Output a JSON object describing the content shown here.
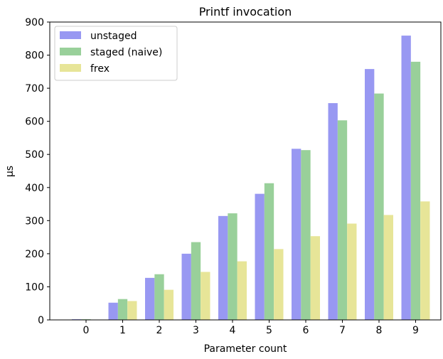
{
  "chart_data": {
    "type": "bar",
    "title": "Printf invocation",
    "xlabel": "Parameter count",
    "ylabel": "µs",
    "categories": [
      "0",
      "1",
      "2",
      "3",
      "4",
      "5",
      "6",
      "7",
      "8",
      "9"
    ],
    "ylim": [
      0,
      900
    ],
    "yticks": [
      "0",
      "100",
      "200",
      "300",
      "400",
      "500",
      "600",
      "700",
      "800",
      "900"
    ],
    "grid": false,
    "legend_position": "top-left",
    "series": [
      {
        "name": "unstaged",
        "color": "#9898f2",
        "values": [
          2,
          52,
          127,
          200,
          314,
          381,
          517,
          655,
          758,
          859
        ]
      },
      {
        "name": "staged (naive)",
        "color": "#99d09a",
        "values": [
          2,
          63,
          138,
          235,
          322,
          413,
          513,
          603,
          684,
          780
        ]
      },
      {
        "name": "frex",
        "color": "#e7e598",
        "values": [
          1,
          57,
          91,
          145,
          177,
          214,
          253,
          291,
          317,
          358
        ]
      }
    ]
  }
}
